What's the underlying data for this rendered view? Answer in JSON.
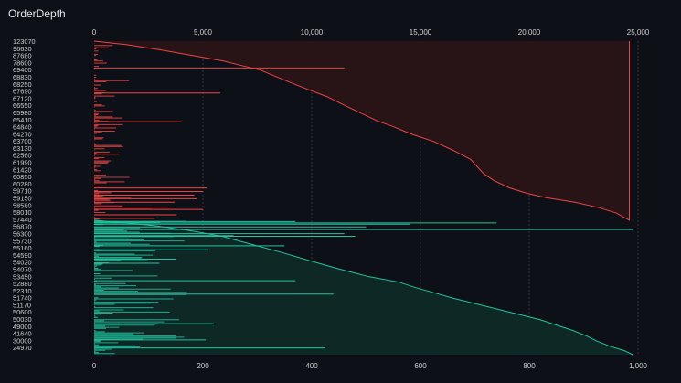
{
  "header": {
    "title": "OrderDepth"
  },
  "colors": {
    "background": "#0d1117",
    "ask": "#ef4444",
    "ask_fill": "#2a1417",
    "bid": "#22c3a0",
    "bid_fill": "#0f2a26",
    "grid": "#3a3f47"
  },
  "chart_data": {
    "type": "bar",
    "orientation": "horizontal",
    "title": "OrderDepth",
    "top_axis": {
      "ticks": [
        "0",
        "5,000",
        "10,000",
        "15,000",
        "20,000",
        "25,000"
      ],
      "range": [
        0,
        25000
      ]
    },
    "bottom_axis": {
      "ticks": [
        "0",
        "200",
        "400",
        "600",
        "800",
        "1,000"
      ],
      "range": [
        0,
        1000
      ]
    },
    "y_labels": [
      "123070",
      "96630",
      "87680",
      "78600",
      "69400",
      "68830",
      "68250",
      "67690",
      "67120",
      "66550",
      "65980",
      "65410",
      "64840",
      "64270",
      "63700",
      "63130",
      "62560",
      "61990",
      "61420",
      "60850",
      "60280",
      "59710",
      "59150",
      "58580",
      "58010",
      "57440",
      "56870",
      "56300",
      "55730",
      "55160",
      "54590",
      "54020",
      "54070",
      "53450",
      "52880",
      "52310",
      "51740",
      "51170",
      "50600",
      "50030",
      "49000",
      "41640",
      "30000",
      "24970"
    ],
    "split_label": "57440",
    "ask_cumulative": [
      [
        0.0,
        0
      ],
      [
        0.02,
        1500
      ],
      [
        0.05,
        3100
      ],
      [
        0.08,
        4500
      ],
      [
        0.11,
        5900
      ],
      [
        0.14,
        6900
      ],
      [
        0.16,
        7600
      ],
      [
        0.2,
        8400
      ],
      [
        0.25,
        9400
      ],
      [
        0.31,
        10700
      ],
      [
        0.37,
        11700
      ],
      [
        0.41,
        12400
      ],
      [
        0.445,
        13000
      ],
      [
        0.475,
        13700
      ],
      [
        0.52,
        14600
      ],
      [
        0.56,
        15600
      ],
      [
        0.61,
        16500
      ],
      [
        0.66,
        17300
      ],
      [
        0.7,
        17600
      ],
      [
        0.74,
        17900
      ],
      [
        0.78,
        18400
      ],
      [
        0.82,
        19100
      ],
      [
        0.85,
        19900
      ],
      [
        0.875,
        20800
      ],
      [
        0.9,
        22100
      ],
      [
        0.93,
        23200
      ],
      [
        0.96,
        24000
      ],
      [
        1.0,
        24600
      ]
    ],
    "bid_cumulative": [
      [
        0.0,
        0
      ],
      [
        0.04,
        110
      ],
      [
        0.08,
        180
      ],
      [
        0.12,
        235
      ],
      [
        0.18,
        290
      ],
      [
        0.24,
        345
      ],
      [
        0.3,
        395
      ],
      [
        0.36,
        448
      ],
      [
        0.42,
        505
      ],
      [
        0.46,
        560
      ],
      [
        0.5,
        590
      ],
      [
        0.54,
        625
      ],
      [
        0.58,
        660
      ],
      [
        0.62,
        700
      ],
      [
        0.66,
        740
      ],
      [
        0.7,
        780
      ],
      [
        0.74,
        820
      ],
      [
        0.78,
        850
      ],
      [
        0.82,
        880
      ],
      [
        0.86,
        905
      ],
      [
        0.9,
        925
      ],
      [
        0.94,
        950
      ],
      [
        0.97,
        975
      ],
      [
        1.0,
        990
      ]
    ],
    "ask_highlights": [
      [
        0.15,
        11500
      ],
      [
        0.29,
        5800
      ],
      [
        0.45,
        4000
      ],
      [
        0.82,
        5200
      ],
      [
        0.84,
        5000
      ],
      [
        0.86,
        4600
      ],
      [
        0.88,
        4700
      ],
      [
        0.9,
        3700
      ],
      [
        0.94,
        5000
      ],
      [
        0.97,
        3800
      ],
      [
        0.99,
        2800
      ]
    ],
    "bid_highlights": [
      [
        0.01,
        370
      ],
      [
        0.02,
        740
      ],
      [
        0.03,
        580
      ],
      [
        0.05,
        500
      ],
      [
        0.07,
        990
      ],
      [
        0.1,
        460
      ],
      [
        0.12,
        480
      ],
      [
        0.19,
        350
      ],
      [
        0.22,
        210
      ],
      [
        0.29,
        150
      ],
      [
        0.32,
        120
      ],
      [
        0.45,
        370
      ],
      [
        0.55,
        440
      ],
      [
        0.77,
        220
      ],
      [
        0.89,
        205
      ],
      [
        0.95,
        425
      ]
    ]
  }
}
